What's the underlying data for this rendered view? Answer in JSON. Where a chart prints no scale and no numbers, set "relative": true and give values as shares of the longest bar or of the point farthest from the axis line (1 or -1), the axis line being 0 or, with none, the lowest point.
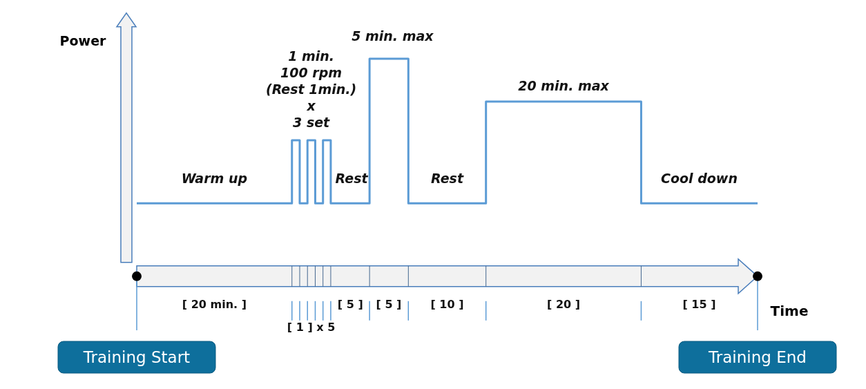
{
  "chart_data": {
    "type": "step",
    "relative": true,
    "xlabel": "Time",
    "ylabel": "Power",
    "categories": [
      null,
      null,
      null,
      null,
      null,
      null,
      null,
      null,
      null,
      null,
      null,
      null,
      null,
      null,
      null,
      null,
      null,
      null,
      null,
      null,
      null,
      null,
      null,
      null,
      null,
      null,
      null,
      null,
      null,
      null,
      null,
      null,
      null,
      null,
      null,
      null,
      null,
      null,
      null,
      null,
      null,
      null,
      null,
      null,
      null,
      null,
      null,
      null,
      null,
      null,
      null,
      null,
      null,
      null,
      null,
      null,
      null,
      null,
      null,
      null,
      null,
      null,
      null,
      null,
      null,
      null,
      null,
      null,
      null,
      null,
      null,
      null,
      null,
      null,
      null,
      null,
      null,
      null,
      null,
      null,
      null
    ],
    "series": [
      {
        "color": "#5b9bd5",
        "values": [
          0.29,
          0.29,
          0.29,
          0.29,
          0.29,
          0.29,
          0.29,
          0.29,
          0.29,
          0.29,
          0.29,
          0.29,
          0.29,
          0.29,
          0.29,
          0.29,
          0.29,
          0.29,
          0.29,
          0.29,
          0.6,
          0.29,
          0.6,
          0.29,
          0.6,
          0.29,
          0.29,
          0.29,
          0.29,
          0.29,
          1,
          1,
          1,
          1,
          1,
          0.29,
          0.29,
          0.29,
          0.29,
          0.29,
          0.29,
          0.29,
          0.29,
          0.29,
          0.29,
          0.79,
          0.79,
          0.79,
          0.79,
          0.79,
          0.79,
          0.79,
          0.79,
          0.79,
          0.79,
          0.79,
          0.79,
          0.79,
          0.79,
          0.79,
          0.79,
          0.79,
          0.79,
          0.79,
          0.79,
          0.29,
          0.29,
          0.29,
          0.29,
          0.29,
          0.29,
          0.29,
          0.29,
          0.29,
          0.29,
          0.29,
          0.29,
          0.29,
          0.29,
          0.29,
          0.29
        ]
      }
    ],
    "annotations": [
      "Warm up",
      "1 min.\n100 rpm\n(Rest 1min.)\nx\n3 set",
      "Rest",
      "5 min. max",
      "Rest",
      "20 min. max",
      "Cool down",
      "[ 20 min. ]",
      "[ 1 ] x 5",
      "[ 5 ]",
      "[ 5 ]",
      "[ 10 ]",
      "[ 20 ]",
      "[ 15 ]",
      "Training Start",
      "Training End"
    ]
  }
}
